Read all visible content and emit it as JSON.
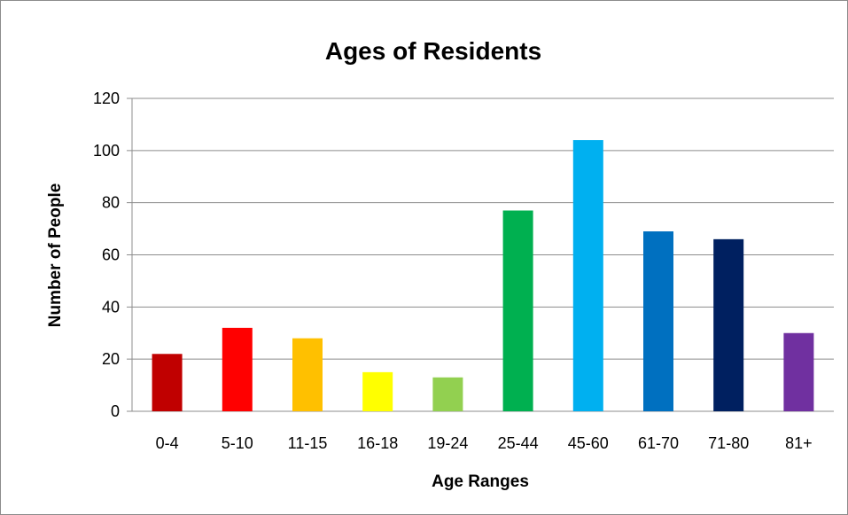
{
  "chart_data": {
    "type": "bar",
    "title": "Ages of Residents",
    "xlabel": "Age Ranges",
    "ylabel": "Number of People",
    "categories": [
      "0-4",
      "5-10",
      "11-15",
      "16-18",
      "19-24",
      "25-44",
      "45-60",
      "61-70",
      "71-80",
      "81+"
    ],
    "values": [
      22,
      32,
      28,
      15,
      13,
      77,
      104,
      69,
      66,
      30
    ],
    "colors": [
      "#c00000",
      "#ff0000",
      "#ffc000",
      "#ffff00",
      "#92d050",
      "#00b050",
      "#00b0f0",
      "#0070c0",
      "#002060",
      "#7030a0"
    ],
    "ylim": [
      0,
      120
    ],
    "yticks": [
      "0",
      "20",
      "40",
      "60",
      "80",
      "100",
      "120"
    ],
    "grid": true,
    "legend": "none"
  }
}
